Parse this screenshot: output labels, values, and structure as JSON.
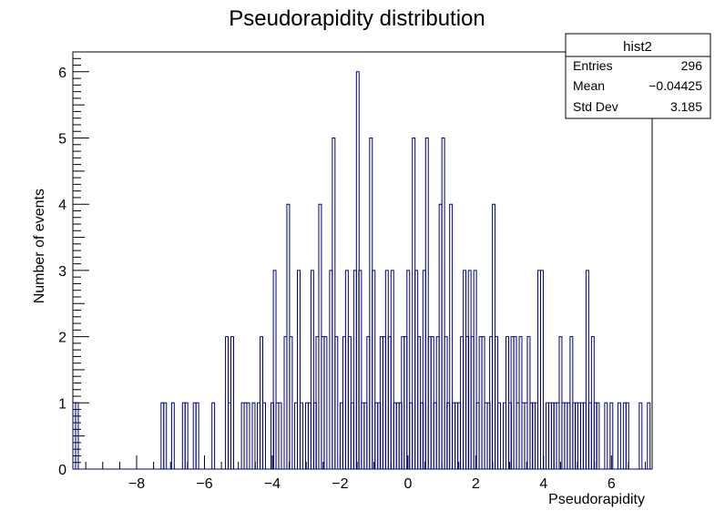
{
  "chart_data": {
    "type": "histogram",
    "title": "Pseudorapidity distribution",
    "xlabel": "Pseudorapidity",
    "ylabel": "Number of events",
    "xlim": [
      -9.88,
      7.2
    ],
    "ylim": [
      0,
      6.3
    ],
    "xticks": [
      -8,
      -6,
      -4,
      -2,
      0,
      2,
      4,
      6
    ],
    "xtick_labels": [
      "−8",
      "−6",
      "−4",
      "−2",
      "0",
      "2",
      "4",
      "6"
    ],
    "yticks": [
      0,
      1,
      2,
      3,
      4,
      5,
      6
    ],
    "ytick_labels": [
      "0",
      "1",
      "2",
      "3",
      "4",
      "5",
      "6"
    ],
    "bin_width": 0.0788,
    "grid": false,
    "line_color": "#000080",
    "series": [
      {
        "name": "hist2",
        "bins": [
          [
            -9.84,
            1
          ],
          [
            -9.76,
            1
          ],
          [
            -7.24,
            1
          ],
          [
            -7.16,
            1
          ],
          [
            -6.93,
            1
          ],
          [
            -6.61,
            1
          ],
          [
            -6.53,
            1
          ],
          [
            -6.29,
            1
          ],
          [
            -6.21,
            1
          ],
          [
            -5.74,
            1
          ],
          [
            -5.34,
            2
          ],
          [
            -5.26,
            1
          ],
          [
            -5.18,
            2
          ],
          [
            -4.87,
            1
          ],
          [
            -4.79,
            1
          ],
          [
            -4.71,
            1
          ],
          [
            -4.55,
            1
          ],
          [
            -4.4,
            1
          ],
          [
            -4.32,
            2
          ],
          [
            -4.24,
            1
          ],
          [
            -4.0,
            1
          ],
          [
            -3.93,
            3
          ],
          [
            -3.85,
            1
          ],
          [
            -3.77,
            1
          ],
          [
            -3.61,
            2
          ],
          [
            -3.53,
            4
          ],
          [
            -3.45,
            2
          ],
          [
            -3.3,
            1
          ],
          [
            -3.22,
            3
          ],
          [
            -3.14,
            1
          ],
          [
            -2.98,
            1
          ],
          [
            -2.9,
            1
          ],
          [
            -2.82,
            3
          ],
          [
            -2.74,
            1
          ],
          [
            -2.67,
            2
          ],
          [
            -2.59,
            4
          ],
          [
            -2.51,
            2
          ],
          [
            -2.43,
            2
          ],
          [
            -2.27,
            3
          ],
          [
            -2.19,
            5
          ],
          [
            -2.11,
            2
          ],
          [
            -1.96,
            1
          ],
          [
            -1.88,
            2
          ],
          [
            -1.8,
            3
          ],
          [
            -1.72,
            2
          ],
          [
            -1.64,
            1
          ],
          [
            -1.56,
            3
          ],
          [
            -1.48,
            6
          ],
          [
            -1.41,
            3
          ],
          [
            -1.33,
            1
          ],
          [
            -1.25,
            1
          ],
          [
            -1.17,
            2
          ],
          [
            -1.09,
            5
          ],
          [
            -1.01,
            3
          ],
          [
            -0.93,
            1
          ],
          [
            -0.85,
            1
          ],
          [
            -0.78,
            2
          ],
          [
            -0.7,
            2
          ],
          [
            -0.62,
            3
          ],
          [
            -0.54,
            2
          ],
          [
            -0.46,
            3
          ],
          [
            -0.38,
            1
          ],
          [
            -0.3,
            1
          ],
          [
            -0.22,
            1
          ],
          [
            -0.15,
            2
          ],
          [
            -0.07,
            2
          ],
          [
            0.01,
            3
          ],
          [
            0.09,
            1
          ],
          [
            0.17,
            5
          ],
          [
            0.25,
            3
          ],
          [
            0.33,
            2
          ],
          [
            0.41,
            1
          ],
          [
            0.48,
            3
          ],
          [
            0.56,
            5
          ],
          [
            0.64,
            2
          ],
          [
            0.72,
            2
          ],
          [
            0.8,
            1
          ],
          [
            0.88,
            2
          ],
          [
            0.96,
            4
          ],
          [
            1.04,
            5
          ],
          [
            1.12,
            2
          ],
          [
            1.19,
            1
          ],
          [
            1.27,
            4
          ],
          [
            1.35,
            1
          ],
          [
            1.43,
            1
          ],
          [
            1.51,
            1
          ],
          [
            1.59,
            2
          ],
          [
            1.67,
            3
          ],
          [
            1.75,
            2
          ],
          [
            1.82,
            3
          ],
          [
            1.9,
            2
          ],
          [
            1.98,
            3
          ],
          [
            2.06,
            1
          ],
          [
            2.14,
            2
          ],
          [
            2.22,
            2
          ],
          [
            2.3,
            1
          ],
          [
            2.38,
            1
          ],
          [
            2.45,
            2
          ],
          [
            2.53,
            4
          ],
          [
            2.61,
            2
          ],
          [
            2.69,
            1
          ],
          [
            2.85,
            1
          ],
          [
            2.93,
            2
          ],
          [
            3.01,
            1
          ],
          [
            3.08,
            2
          ],
          [
            3.16,
            2
          ],
          [
            3.24,
            1
          ],
          [
            3.32,
            2
          ],
          [
            3.4,
            1
          ],
          [
            3.48,
            1
          ],
          [
            3.56,
            2
          ],
          [
            3.64,
            1
          ],
          [
            3.71,
            1
          ],
          [
            3.79,
            1
          ],
          [
            3.87,
            3
          ],
          [
            3.95,
            3
          ],
          [
            4.11,
            1
          ],
          [
            4.19,
            1
          ],
          [
            4.27,
            1
          ],
          [
            4.34,
            1
          ],
          [
            4.42,
            1
          ],
          [
            4.5,
            2
          ],
          [
            4.58,
            1
          ],
          [
            4.66,
            1
          ],
          [
            4.74,
            1
          ],
          [
            4.82,
            2
          ],
          [
            4.9,
            1
          ],
          [
            4.97,
            1
          ],
          [
            5.05,
            1
          ],
          [
            5.13,
            1
          ],
          [
            5.21,
            1
          ],
          [
            5.29,
            3
          ],
          [
            5.37,
            1
          ],
          [
            5.45,
            2
          ],
          [
            5.53,
            1
          ],
          [
            5.6,
            1
          ],
          [
            5.84,
            1
          ],
          [
            6.0,
            1
          ],
          [
            6.23,
            1
          ],
          [
            6.39,
            1
          ],
          [
            6.47,
            1
          ],
          [
            6.86,
            1
          ],
          [
            7.1,
            1
          ]
        ]
      }
    ],
    "stats_box": {
      "name": "hist2",
      "rows": [
        {
          "label": "Entries",
          "value": "296"
        },
        {
          "label": "Mean",
          "value": "−0.04425"
        },
        {
          "label": "Std Dev",
          "value": "3.185"
        }
      ]
    }
  }
}
